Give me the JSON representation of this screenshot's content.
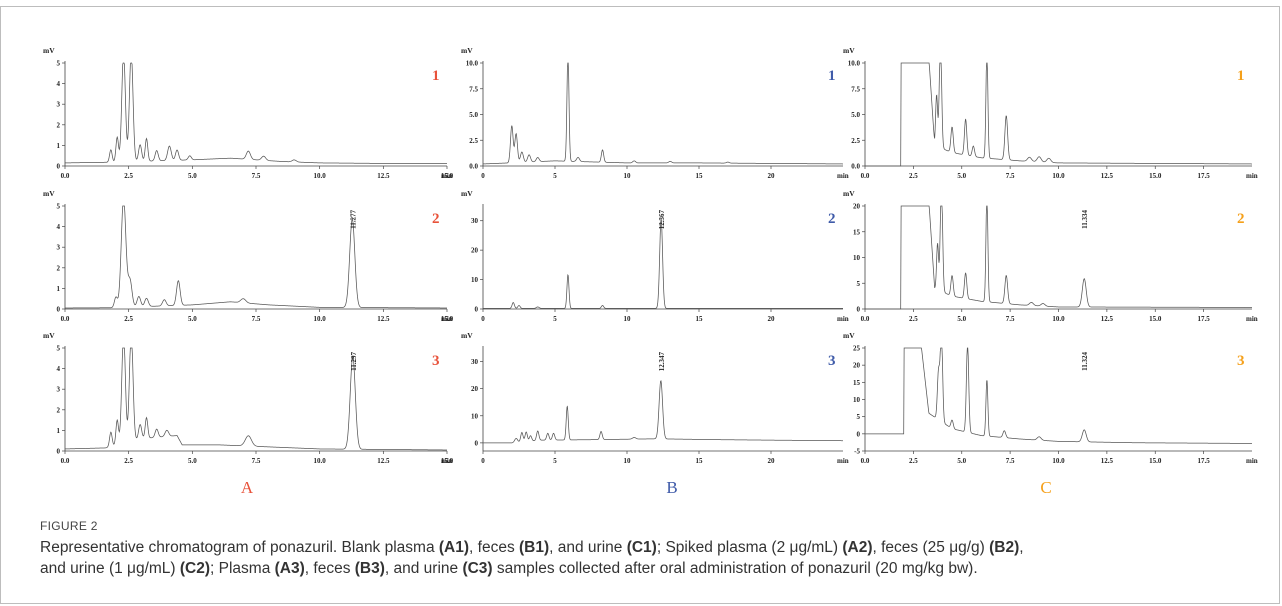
{
  "colors": {
    "A": "#e8523a",
    "B": "#3f5ba9",
    "C": "#f5a01a",
    "trace": "#555555"
  },
  "axis": {
    "y_unit": "mV",
    "x_unit": "min"
  },
  "column_letters": [
    "A",
    "B",
    "C"
  ],
  "chart_data": [
    {
      "id": "A1",
      "type": "line",
      "column": "A",
      "number_label": "1",
      "xlim": [
        0,
        15
      ],
      "ylim": [
        0,
        5
      ],
      "x_ticks": [
        "0.0",
        "2.5",
        "5.0",
        "7.5",
        "10.0",
        "12.5",
        "15.0"
      ],
      "x_tick_values": [
        0,
        2.5,
        5,
        7.5,
        10,
        12.5,
        15
      ],
      "y_ticks": [
        "0",
        "1",
        "2",
        "3",
        "4",
        "5"
      ],
      "y_tick_values": [
        0,
        1,
        2,
        3,
        4,
        5
      ],
      "baseline": [
        [
          0,
          0.15
        ],
        [
          1.6,
          0.18
        ],
        [
          5,
          0.3
        ],
        [
          6.5,
          0.38
        ],
        [
          8.5,
          0.22
        ],
        [
          10,
          0.15
        ],
        [
          13,
          0.12
        ],
        [
          15,
          0.12
        ]
      ],
      "peaks": [
        [
          1.8,
          0.6,
          0.05
        ],
        [
          2.05,
          1.2,
          0.05
        ],
        [
          2.3,
          5.3,
          0.07
        ],
        [
          2.6,
          5.3,
          0.07
        ],
        [
          2.95,
          0.8,
          0.06
        ],
        [
          3.2,
          1.1,
          0.05
        ],
        [
          3.6,
          0.5,
          0.06
        ],
        [
          4.1,
          0.7,
          0.07
        ],
        [
          4.4,
          0.5,
          0.06
        ],
        [
          4.9,
          0.2,
          0.06
        ],
        [
          7.2,
          0.4,
          0.08
        ],
        [
          7.8,
          0.2,
          0.08
        ],
        [
          9.0,
          0.1,
          0.08
        ]
      ],
      "peak_label": "",
      "peak_label_x": null
    },
    {
      "id": "B1",
      "type": "line",
      "column": "B",
      "number_label": "1",
      "xlim": [
        0,
        25
      ],
      "ylim": [
        0,
        10
      ],
      "x_ticks": [
        "0",
        "5",
        "10",
        "15",
        "20"
      ],
      "x_tick_values": [
        0,
        5,
        10,
        15,
        20
      ],
      "y_ticks": [
        "0.0",
        "2.5",
        "5.0",
        "7.5",
        "10.0"
      ],
      "y_tick_values": [
        0,
        2.5,
        5,
        7.5,
        10
      ],
      "baseline": [
        [
          0,
          0.2
        ],
        [
          1.8,
          0.3
        ],
        [
          5,
          0.5
        ],
        [
          10,
          0.3
        ],
        [
          15,
          0.3
        ],
        [
          20,
          0.25
        ],
        [
          25,
          0.2
        ]
      ],
      "peaks": [
        [
          2.0,
          3.6,
          0.09
        ],
        [
          2.3,
          2.8,
          0.09
        ],
        [
          2.7,
          1.0,
          0.1
        ],
        [
          3.2,
          0.7,
          0.1
        ],
        [
          3.8,
          0.4,
          0.1
        ],
        [
          5.9,
          10.5,
          0.07
        ],
        [
          6.6,
          0.4,
          0.1
        ],
        [
          8.3,
          1.2,
          0.08
        ],
        [
          10.5,
          0.2,
          0.1
        ],
        [
          13,
          0.15,
          0.1
        ],
        [
          17,
          0.1,
          0.1
        ]
      ],
      "peak_label": "",
      "peak_label_x": null
    },
    {
      "id": "C1",
      "type": "line",
      "column": "C",
      "number_label": "1",
      "xlim": [
        0,
        20
      ],
      "ylim": [
        0,
        10
      ],
      "x_ticks": [
        "0.0",
        "2.5",
        "5.0",
        "7.5",
        "10.0",
        "12.5",
        "15.0",
        "17.5"
      ],
      "x_tick_values": [
        0,
        2.5,
        5,
        7.5,
        10,
        12.5,
        15,
        17.5
      ],
      "y_ticks": [
        "0.0",
        "2.5",
        "5.0",
        "7.5",
        "10.0"
      ],
      "y_tick_values": [
        0,
        2.5,
        5,
        7.5,
        10
      ],
      "baseline": [
        [
          0,
          0
        ],
        [
          1.85,
          0
        ],
        [
          1.86,
          10.5
        ],
        [
          3.3,
          10.5
        ],
        [
          3.6,
          2.0
        ],
        [
          4.5,
          1.3
        ],
        [
          6,
          0.8
        ],
        [
          8,
          0.5
        ],
        [
          10,
          0.3
        ],
        [
          15,
          0.25
        ],
        [
          20,
          0.2
        ]
      ],
      "peaks": [
        [
          3.7,
          5.0,
          0.05
        ],
        [
          3.9,
          10.5,
          0.06
        ],
        [
          4.5,
          2.5,
          0.06
        ],
        [
          5.2,
          3.5,
          0.06
        ],
        [
          5.6,
          1.0,
          0.06
        ],
        [
          6.3,
          10.5,
          0.05
        ],
        [
          7.3,
          4.3,
          0.07
        ],
        [
          8.5,
          0.4,
          0.1
        ],
        [
          9.0,
          0.5,
          0.1
        ],
        [
          9.5,
          0.4,
          0.1
        ]
      ],
      "peak_label": "",
      "peak_label_x": null
    },
    {
      "id": "A2",
      "type": "line",
      "column": "A",
      "number_label": "2",
      "xlim": [
        0,
        15
      ],
      "ylim": [
        0,
        5
      ],
      "x_ticks": [
        "0.0",
        "2.5",
        "5.0",
        "7.5",
        "10.0",
        "12.5",
        "15.0"
      ],
      "x_tick_values": [
        0,
        2.5,
        5,
        7.5,
        10,
        12.5,
        15
      ],
      "y_ticks": [
        "0",
        "1",
        "2",
        "3",
        "4",
        "5"
      ],
      "y_tick_values": [
        0,
        1,
        2,
        3,
        4,
        5
      ],
      "baseline": [
        [
          0,
          0.05
        ],
        [
          1.8,
          0.06
        ],
        [
          5,
          0.2
        ],
        [
          6.5,
          0.35
        ],
        [
          8,
          0.2
        ],
        [
          10,
          0.08
        ],
        [
          15,
          0.05
        ]
      ],
      "peaks": [
        [
          2.0,
          0.5,
          0.06
        ],
        [
          2.3,
          5.3,
          0.09
        ],
        [
          2.55,
          1.3,
          0.08
        ],
        [
          2.9,
          0.5,
          0.07
        ],
        [
          3.2,
          0.4,
          0.07
        ],
        [
          3.9,
          0.3,
          0.07
        ],
        [
          4.45,
          1.2,
          0.07
        ],
        [
          7.0,
          0.2,
          0.1
        ],
        [
          11.28,
          4.3,
          0.1
        ]
      ],
      "peak_label": "11.277",
      "peak_label_x": 11.28
    },
    {
      "id": "B2",
      "type": "line",
      "column": "B",
      "number_label": "2",
      "xlim": [
        0,
        25
      ],
      "ylim": [
        0,
        35
      ],
      "x_ticks": [
        "0",
        "5",
        "10",
        "15",
        "20"
      ],
      "x_tick_values": [
        0,
        5,
        10,
        15,
        20
      ],
      "y_ticks": [
        "0",
        "10",
        "20",
        "30"
      ],
      "y_tick_values": [
        0,
        10,
        20,
        30
      ],
      "baseline": [
        [
          0,
          0.2
        ],
        [
          25,
          0.2
        ]
      ],
      "peaks": [
        [
          2.1,
          2.0,
          0.08
        ],
        [
          2.5,
          1.0,
          0.08
        ],
        [
          3.8,
          0.5,
          0.1
        ],
        [
          5.9,
          11.5,
          0.07
        ],
        [
          8.3,
          1.0,
          0.08
        ],
        [
          12.37,
          30.5,
          0.1
        ]
      ],
      "peak_label": "12.367",
      "peak_label_x": 12.37
    },
    {
      "id": "C2",
      "type": "line",
      "column": "C",
      "number_label": "2",
      "xlim": [
        0,
        20
      ],
      "ylim": [
        0,
        20
      ],
      "x_ticks": [
        "0.0",
        "2.5",
        "5.0",
        "7.5",
        "10.0",
        "12.5",
        "15.0",
        "17.5"
      ],
      "x_tick_values": [
        0,
        2.5,
        5,
        7.5,
        10,
        12.5,
        15,
        17.5
      ],
      "y_ticks": [
        "0",
        "5",
        "10",
        "15",
        "20"
      ],
      "y_tick_values": [
        0,
        5,
        10,
        15,
        20
      ],
      "baseline": [
        [
          0,
          0
        ],
        [
          1.85,
          0
        ],
        [
          1.86,
          21
        ],
        [
          3.3,
          21
        ],
        [
          3.6,
          4
        ],
        [
          4.5,
          2.5
        ],
        [
          6,
          1.5
        ],
        [
          8,
          0.8
        ],
        [
          10,
          0.4
        ],
        [
          20,
          0.3
        ]
      ],
      "peaks": [
        [
          3.75,
          9,
          0.05
        ],
        [
          3.95,
          21,
          0.06
        ],
        [
          4.5,
          4,
          0.06
        ],
        [
          5.2,
          5,
          0.06
        ],
        [
          6.3,
          21,
          0.05
        ],
        [
          7.3,
          5.5,
          0.07
        ],
        [
          8.6,
          0.6,
          0.1
        ],
        [
          9.2,
          0.5,
          0.1
        ],
        [
          11.33,
          5.5,
          0.1
        ]
      ],
      "peak_label": "11.334",
      "peak_label_x": 11.33
    },
    {
      "id": "A3",
      "type": "line",
      "column": "A",
      "number_label": "3",
      "xlim": [
        0,
        15
      ],
      "ylim": [
        0,
        5
      ],
      "x_ticks": [
        "0.0",
        "2.5",
        "5.0",
        "7.5",
        "10.0",
        "12.5",
        "15.0"
      ],
      "x_tick_values": [
        0,
        2.5,
        5,
        7.5,
        10,
        12.5,
        15
      ],
      "y_ticks": [
        "0",
        "1",
        "2",
        "3",
        "4",
        "5"
      ],
      "y_tick_values": [
        0,
        1,
        2,
        3,
        4,
        5
      ],
      "baseline": [
        [
          0,
          0.1
        ],
        [
          1.6,
          0.15
        ],
        [
          3.0,
          0.6
        ],
        [
          4.4,
          0.75
        ],
        [
          4.6,
          0.3
        ],
        [
          6,
          0.3
        ],
        [
          8,
          0.2
        ],
        [
          10,
          0.1
        ],
        [
          15,
          0.05
        ]
      ],
      "peaks": [
        [
          1.8,
          0.7,
          0.05
        ],
        [
          2.05,
          1.2,
          0.05
        ],
        [
          2.3,
          5.3,
          0.07
        ],
        [
          2.6,
          5.3,
          0.07
        ],
        [
          2.95,
          0.7,
          0.06
        ],
        [
          3.2,
          1.0,
          0.05
        ],
        [
          3.6,
          0.4,
          0.06
        ],
        [
          4.0,
          0.3,
          0.07
        ],
        [
          7.2,
          0.5,
          0.12
        ],
        [
          11.3,
          4.5,
          0.1
        ]
      ],
      "peak_label": "11.297",
      "peak_label_x": 11.3
    },
    {
      "id": "B3",
      "type": "line",
      "column": "B",
      "number_label": "3",
      "xlim": [
        0,
        25
      ],
      "ylim": [
        -3,
        35
      ],
      "x_ticks": [
        "0",
        "5",
        "10",
        "15",
        "20"
      ],
      "x_tick_values": [
        0,
        5,
        10,
        15,
        20
      ],
      "y_ticks": [
        "0",
        "10",
        "20",
        "30"
      ],
      "y_tick_values": [
        0,
        10,
        20,
        30
      ],
      "baseline": [
        [
          0,
          0
        ],
        [
          2,
          0
        ],
        [
          4,
          1.0
        ],
        [
          8,
          1.2
        ],
        [
          12,
          1.5
        ],
        [
          16,
          1.2
        ],
        [
          20,
          1.0
        ],
        [
          25,
          0.8
        ]
      ],
      "peaks": [
        [
          2.3,
          1.5,
          0.1
        ],
        [
          2.7,
          3.5,
          0.08
        ],
        [
          3.0,
          3.5,
          0.08
        ],
        [
          3.3,
          2.0,
          0.08
        ],
        [
          3.8,
          3.5,
          0.08
        ],
        [
          4.5,
          2.5,
          0.08
        ],
        [
          4.9,
          2.5,
          0.08
        ],
        [
          5.85,
          12.5,
          0.07
        ],
        [
          8.2,
          3.0,
          0.08
        ],
        [
          10.5,
          0.6,
          0.12
        ],
        [
          12.35,
          21.5,
          0.12
        ]
      ],
      "peak_label": "12.347",
      "peak_label_x": 12.35
    },
    {
      "id": "C3",
      "type": "line",
      "column": "C",
      "number_label": "3",
      "xlim": [
        0,
        20
      ],
      "ylim": [
        -5,
        25
      ],
      "x_ticks": [
        "0.0",
        "2.5",
        "5.0",
        "7.5",
        "10.0",
        "12.5",
        "15.0",
        "17.5"
      ],
      "x_tick_values": [
        0,
        2.5,
        5,
        7.5,
        10,
        12.5,
        15,
        17.5
      ],
      "y_ticks": [
        "-5",
        "0",
        "5",
        "10",
        "15",
        "20",
        "25"
      ],
      "y_tick_values": [
        -5,
        0,
        5,
        10,
        15,
        20,
        25
      ],
      "baseline": [
        [
          0,
          0
        ],
        [
          2.0,
          0
        ],
        [
          2.01,
          26
        ],
        [
          2.9,
          26
        ],
        [
          3.3,
          6
        ],
        [
          4.5,
          1.5
        ],
        [
          6,
          -0.5
        ],
        [
          8,
          -1.5
        ],
        [
          10,
          -2.2
        ],
        [
          14,
          -2.6
        ],
        [
          20,
          -2.8
        ]
      ],
      "peaks": [
        [
          3.8,
          14,
          0.06
        ],
        [
          3.95,
          26,
          0.06
        ],
        [
          4.5,
          2.5,
          0.06
        ],
        [
          5.3,
          26,
          0.06
        ],
        [
          6.3,
          16.5,
          0.05
        ],
        [
          7.2,
          2.0,
          0.07
        ],
        [
          9.0,
          1.0,
          0.1
        ],
        [
          11.33,
          3.5,
          0.1
        ]
      ],
      "peak_label": "11.324",
      "peak_label_x": 11.33
    }
  ],
  "caption": {
    "label": "FIGURE 2",
    "line1": {
      "text1": "Representative chromatogram of ponazuril. Blank plasma ",
      "ref1": "(A1)",
      "text2": ", feces ",
      "ref2": "(B1)",
      "text3": ", and urine ",
      "ref3": "(C1)",
      "text4": "; Spiked plasma (2 μg/mL) ",
      "ref4": "(A2)",
      "text5": ", feces (25 μg/g) ",
      "ref5": "(B2)",
      "text6": ","
    },
    "line2": {
      "text1": "and urine (1 μg/mL) ",
      "ref1": "(C2)",
      "text2": "; Plasma ",
      "ref2": "(A3)",
      "text3": ", feces ",
      "ref3": "(B3)",
      "text4": ", and urine ",
      "ref4": "(C3)",
      "text5": " samples collected after oral administration of ponazuril (20 mg/kg bw)."
    }
  }
}
